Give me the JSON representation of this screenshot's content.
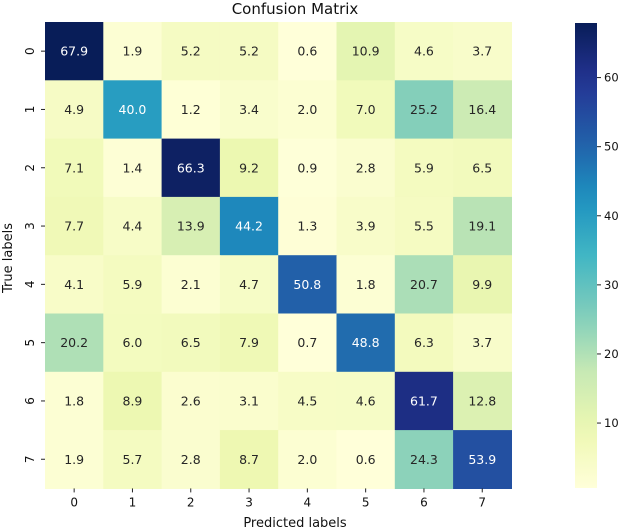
{
  "chart_data": {
    "type": "heatmap",
    "title": "Confusion Matrix",
    "xlabel": "Predicted labels",
    "ylabel": "True labels",
    "x_categories": [
      "0",
      "1",
      "2",
      "3",
      "4",
      "5",
      "6",
      "7"
    ],
    "y_categories": [
      "0",
      "1",
      "2",
      "3",
      "4",
      "5",
      "6",
      "7"
    ],
    "values": [
      [
        67.9,
        1.9,
        5.2,
        5.2,
        0.6,
        10.9,
        4.6,
        3.7
      ],
      [
        4.9,
        40.0,
        1.2,
        3.4,
        2.0,
        7.0,
        25.2,
        16.4
      ],
      [
        7.1,
        1.4,
        66.3,
        9.2,
        0.9,
        2.8,
        5.9,
        6.5
      ],
      [
        7.7,
        4.4,
        13.9,
        44.2,
        1.3,
        3.9,
        5.5,
        19.1
      ],
      [
        4.1,
        5.9,
        2.1,
        4.7,
        50.8,
        1.8,
        20.7,
        9.9
      ],
      [
        20.2,
        6.0,
        6.5,
        7.9,
        0.7,
        48.8,
        6.3,
        3.7
      ],
      [
        1.8,
        8.9,
        2.6,
        3.1,
        4.5,
        4.6,
        61.7,
        12.8
      ],
      [
        1.9,
        5.7,
        2.8,
        8.7,
        2.0,
        0.6,
        24.3,
        53.9
      ]
    ],
    "colormap": "YlGnBu",
    "color_range": [
      0.6,
      67.9
    ],
    "colorbar_ticks": [
      "10",
      "20",
      "30",
      "40",
      "50",
      "60"
    ],
    "colorbar_tick_values": [
      10,
      20,
      30,
      40,
      50,
      60
    ]
  }
}
